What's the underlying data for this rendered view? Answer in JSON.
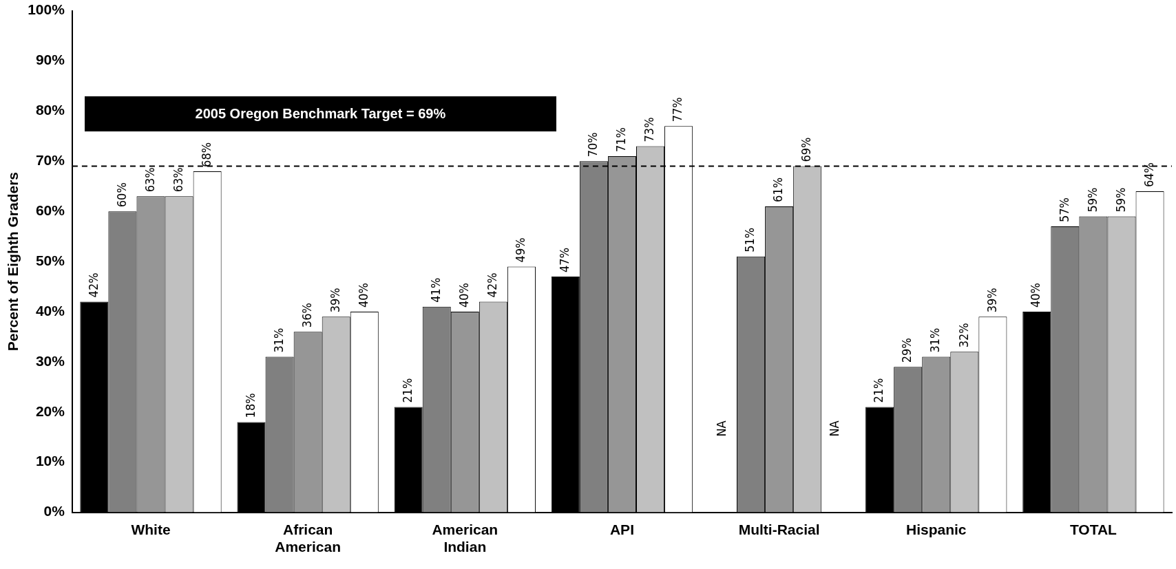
{
  "chart_data": {
    "type": "bar",
    "ylabel": "Percent of Eighth Graders",
    "categories": [
      "White",
      "African American",
      "American Indian",
      "API",
      "Multi-Racial",
      "Hispanic",
      "TOTAL"
    ],
    "series": [
      {
        "color": "#000000",
        "values": [
          42,
          18,
          21,
          47,
          null,
          21,
          40
        ],
        "value_labels": [
          "42%",
          "18%",
          "21%",
          "47%",
          "NA",
          "21%",
          "40%"
        ]
      },
      {
        "color": "#808080",
        "values": [
          60,
          31,
          41,
          70,
          51,
          29,
          57
        ],
        "value_labels": [
          "60%",
          "31%",
          "41%",
          "70%",
          "51%",
          "29%",
          "57%"
        ]
      },
      {
        "color": "#969696",
        "values": [
          63,
          36,
          40,
          71,
          61,
          31,
          59
        ],
        "value_labels": [
          "63%",
          "36%",
          "40%",
          "71%",
          "61%",
          "31%",
          "59%"
        ]
      },
      {
        "color": "#c0c0c0",
        "values": [
          63,
          39,
          42,
          73,
          69,
          32,
          59
        ],
        "value_labels": [
          "63%",
          "39%",
          "42%",
          "73%",
          "69%",
          "32%",
          "59%"
        ]
      },
      {
        "color": "#ffffff",
        "values": [
          68,
          40,
          49,
          77,
          null,
          39,
          64
        ],
        "value_labels": [
          "68%",
          "40%",
          "49%",
          "77%",
          "NA",
          "39%",
          "64%"
        ]
      }
    ],
    "ylim": [
      0,
      100
    ],
    "yticks": [
      {
        "value": 0,
        "label": "0%"
      },
      {
        "value": 10,
        "label": "10%"
      },
      {
        "value": 20,
        "label": "20%"
      },
      {
        "value": 30,
        "label": "30%"
      },
      {
        "value": 40,
        "label": "40%"
      },
      {
        "value": 50,
        "label": "50%"
      },
      {
        "value": 60,
        "label": "60%"
      },
      {
        "value": 70,
        "label": "70%"
      },
      {
        "value": 80,
        "label": "80%"
      },
      {
        "value": 90,
        "label": "90%"
      },
      {
        "value": 100,
        "label": "100%"
      }
    ],
    "ref_lines": [
      {
        "axis": "y",
        "value": 69,
        "color": "#000000",
        "line_style": "dashed"
      }
    ],
    "annotations": [
      "2005 Oregon Benchmark Target = 69%"
    ],
    "grid": false,
    "legend": false
  }
}
